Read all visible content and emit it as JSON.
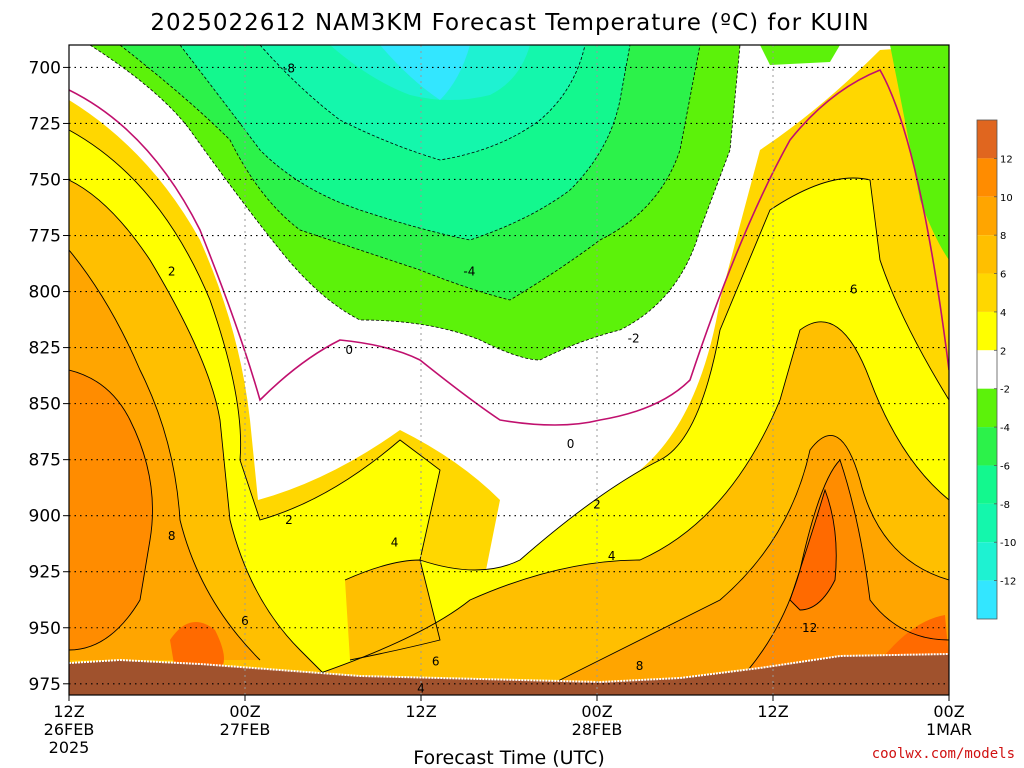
{
  "chart_data": {
    "type": "heatmap",
    "title": "2025022612 NAM3KM Forecast Temperature (ºC) for KUIN",
    "xlabel": "Forecast Time (UTC)",
    "ylabel": "",
    "y_axis": {
      "unit": "hPa",
      "ylim": [
        980,
        690
      ],
      "ticks": [
        700,
        725,
        750,
        775,
        800,
        825,
        850,
        875,
        900,
        925,
        950,
        975
      ]
    },
    "x_axis": {
      "ticks": [
        {
          "hour": 0,
          "line1": "12Z",
          "line2": "26FEB",
          "line3": "2025"
        },
        {
          "hour": 12,
          "line1": "00Z",
          "line2": "27FEB",
          "line3": ""
        },
        {
          "hour": 24,
          "line1": "12Z",
          "line2": "",
          "line3": ""
        },
        {
          "hour": 36,
          "line1": "00Z",
          "line2": "28FEB",
          "line3": ""
        },
        {
          "hour": 48,
          "line1": "12Z",
          "line2": "",
          "line3": ""
        },
        {
          "hour": 60,
          "line1": "00Z",
          "line2": "1MAR",
          "line3": ""
        }
      ],
      "xlim": [
        0,
        60
      ]
    },
    "grid": {
      "horizontal_dotted": true,
      "vertical_dotted": true
    },
    "colorbar": {
      "placement": "right",
      "bins": [
        {
          "lo": -14,
          "hi": -12,
          "color": "#33e6ff"
        },
        {
          "lo": -12,
          "hi": -10,
          "color": "#1ef2d2"
        },
        {
          "lo": -10,
          "hi": -8,
          "color": "#14f7ac"
        },
        {
          "lo": -8,
          "hi": -6,
          "color": "#13f88e"
        },
        {
          "lo": -6,
          "hi": -4,
          "color": "#2cf24a"
        },
        {
          "lo": -4,
          "hi": -2,
          "color": "#5cf20a"
        },
        {
          "lo": -2,
          "hi": 2,
          "color": "#ffffff"
        },
        {
          "lo": 2,
          "hi": 4,
          "color": "#ffff00"
        },
        {
          "lo": 4,
          "hi": 6,
          "color": "#ffd700"
        },
        {
          "lo": 6,
          "hi": 8,
          "color": "#ffbf00"
        },
        {
          "lo": 8,
          "hi": 10,
          "color": "#ffa500"
        },
        {
          "lo": 10,
          "hi": 12,
          "color": "#ff8c00"
        },
        {
          "lo": 12,
          "hi": 14,
          "color": "#e0661f"
        }
      ],
      "tick_labels": [
        "12",
        "10",
        "8",
        "6",
        "4",
        "2",
        "-2",
        "-4",
        "-6",
        "-8",
        "-10",
        "-12"
      ]
    },
    "contour_labels": [
      {
        "text": "-8",
        "hour": 15.0,
        "p": 700.5
      },
      {
        "text": "-4",
        "hour": 27.3,
        "p": 791
      },
      {
        "text": "-2",
        "hour": 38.5,
        "p": 821
      },
      {
        "text": "2",
        "hour": 7.0,
        "p": 791
      },
      {
        "text": "0",
        "hour": 19.1,
        "p": 826
      },
      {
        "text": "0",
        "hour": 34.2,
        "p": 868
      },
      {
        "text": "6",
        "hour": 53.5,
        "p": 799
      },
      {
        "text": "2",
        "hour": 15.0,
        "p": 902
      },
      {
        "text": "4",
        "hour": 22.2,
        "p": 912
      },
      {
        "text": "2",
        "hour": 36.0,
        "p": 895
      },
      {
        "text": "4",
        "hour": 37.0,
        "p": 918
      },
      {
        "text": "8",
        "hour": 7.0,
        "p": 909
      },
      {
        "text": "6",
        "hour": 12.0,
        "p": 947
      },
      {
        "text": "6",
        "hour": 25.0,
        "p": 965
      },
      {
        "text": "4",
        "hour": 24.0,
        "p": 977
      },
      {
        "text": "8",
        "hour": 38.9,
        "p": 967
      },
      {
        "text": "12",
        "hour": 50.5,
        "p": 950
      }
    ],
    "terrain_color": "#a0522d"
  },
  "credit": "coolwx.com/models"
}
